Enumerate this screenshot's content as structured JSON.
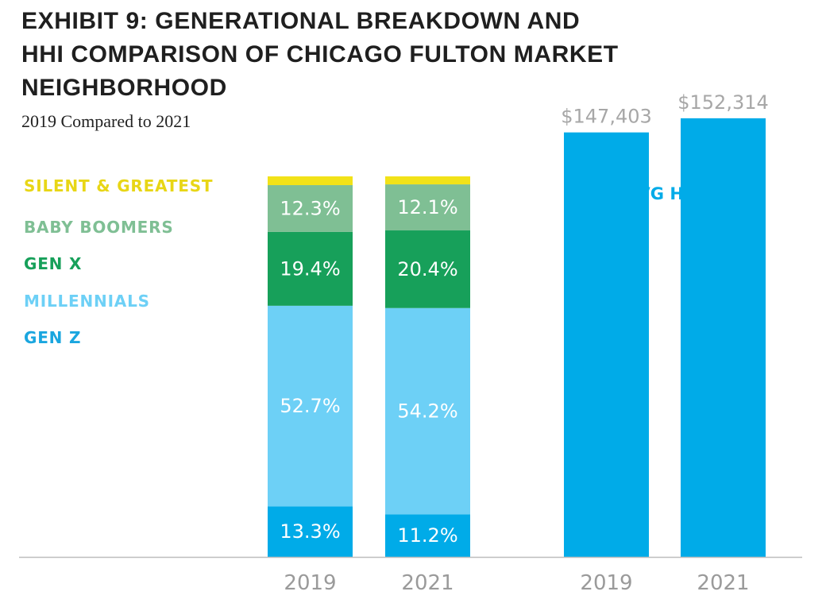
{
  "title_lines": [
    "EXHIBIT 9: GENERATIONAL BREAKDOWN AND",
    "HHI COMPARISON OF CHICAGO FULTON MARKET",
    "NEIGHBORHOOD"
  ],
  "subtitle": "2019 Compared to 2021",
  "colors": {
    "silent_greatest": "#f2e218",
    "baby_boomers": "#7fbf94",
    "gen_x": "#17a05a",
    "millennials": "#6dd0f6",
    "gen_z": "#00abe8",
    "hhi_bar": "#00abe8",
    "axis_label": "#9a9a9a",
    "hhi_value_label": "#a7a7a7",
    "in_bar_label": "#ffffff",
    "baseline": "#bdbdbd"
  },
  "legend": [
    {
      "label": "SILENT & GREATEST",
      "color": "#e8d616"
    },
    {
      "label": "BABY BOOMERS",
      "color": "#7fbf94"
    },
    {
      "label": "GEN X",
      "color": "#17a05a"
    },
    {
      "label": "MILLENNIALS",
      "color": "#6dd0f6"
    },
    {
      "label": "GEN Z",
      "color": "#1aa6df"
    }
  ],
  "chart_data": [
    {
      "type": "bar",
      "stacked": true,
      "unit": "%",
      "categories": [
        "2019",
        "2021"
      ],
      "series": [
        {
          "name": "GEN Z",
          "values": [
            13.3,
            11.2
          ],
          "labels": [
            "13.3%",
            "11.2%"
          ]
        },
        {
          "name": "MILLENNIALS",
          "values": [
            52.7,
            54.2
          ],
          "labels": [
            "52.7%",
            "54.2%"
          ]
        },
        {
          "name": "GEN X",
          "values": [
            19.4,
            20.4
          ],
          "labels": [
            "19.4%",
            "20.4%"
          ]
        },
        {
          "name": "BABY BOOMERS",
          "values": [
            12.3,
            12.1
          ],
          "labels": [
            "12.3%",
            "12.1%"
          ]
        },
        {
          "name": "SILENT & GREATEST",
          "values": [
            2.3,
            2.1
          ],
          "labels": [
            "",
            ""
          ]
        }
      ],
      "ylim": [
        0,
        100
      ],
      "grid": false,
      "legend_position": "left"
    },
    {
      "type": "bar",
      "title": "AVG HHI",
      "categories": [
        "2019",
        "2021"
      ],
      "values": [
        147403,
        152314
      ],
      "value_labels": [
        "$147,403",
        "$152,314"
      ],
      "ylim": [
        0,
        196000
      ],
      "grid": false
    }
  ]
}
